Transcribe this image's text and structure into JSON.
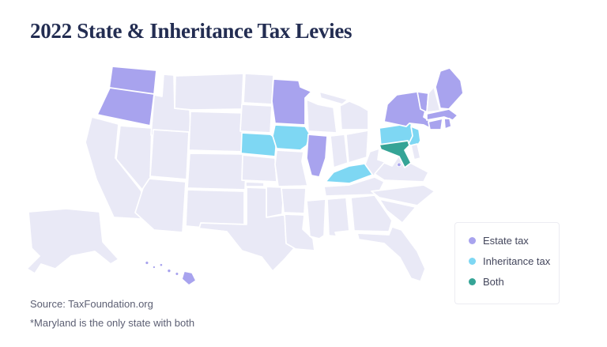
{
  "title": "2022 State & Inheritance Tax Levies",
  "legend": {
    "items": [
      {
        "label": "Estate tax",
        "color": "#a8a3ee"
      },
      {
        "label": "Inheritance tax",
        "color": "#7ed7f3"
      },
      {
        "label": "Both",
        "color": "#35a496"
      }
    ]
  },
  "footer": {
    "source": "Source: TaxFoundation.org",
    "note": "*Maryland is the only state with both"
  },
  "map": {
    "default_fill": "#e9e9f6",
    "border_color": "#ffffff",
    "category_colors": {
      "estate": "#a8a3ee",
      "inheritance": "#7ed7f3",
      "both": "#35a496"
    },
    "state_categories": {
      "WA": "estate",
      "OR": "estate",
      "HI": "estate",
      "MN": "estate",
      "IL": "estate",
      "NY": "estate",
      "VT": "estate",
      "ME": "estate",
      "MA": "estate",
      "RI": "estate",
      "CT": "estate",
      "DC": "estate",
      "NE": "inheritance",
      "IA": "inheritance",
      "KY": "inheritance",
      "PA": "inheritance",
      "NJ": "inheritance",
      "MD": "both"
    }
  },
  "chart_data": {
    "type": "choropleth",
    "title": "2022 State & Inheritance Tax Levies",
    "legend_entries": [
      "Estate tax",
      "Inheritance tax",
      "Both"
    ],
    "categories": {
      "estate_tax": [
        "WA",
        "OR",
        "HI",
        "MN",
        "IL",
        "NY",
        "VT",
        "ME",
        "MA",
        "RI",
        "CT",
        "DC"
      ],
      "inheritance_tax": [
        "NE",
        "IA",
        "KY",
        "PA",
        "NJ"
      ],
      "both": [
        "MD"
      ]
    },
    "source": "Source: TaxFoundation.org",
    "annotation": "*Maryland is the only state with both",
    "legend_position": "bottom-right"
  }
}
